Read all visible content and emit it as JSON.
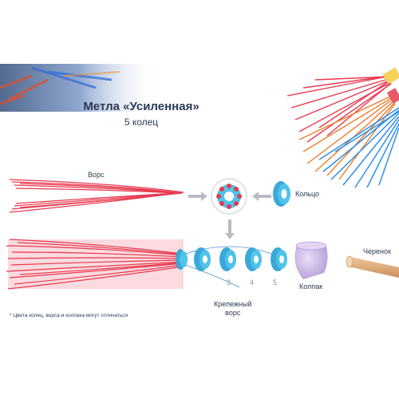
{
  "product": {
    "title": "Метла «Усиленная»",
    "subtitle": "5 колец"
  },
  "labels": {
    "bristles": "Ворс",
    "ring": "Кольцо",
    "handle": "Черенок",
    "cap": "Колпак",
    "fastening_bristles": "Крепежный\nворс"
  },
  "ring_numbers": [
    "3",
    "4",
    "5"
  ],
  "note": "* Цвета колец, ворса и колпака могут отличаться",
  "colors": {
    "bristle_red": "#e8384f",
    "bristle_orange": "#f07b2a",
    "bristle_blue": "#2e8fe8",
    "ring_blue": "#4fc3e8",
    "cap_purple": "#c7b5e3",
    "handle_wood": "#d9a97a",
    "text": "#2b3a55"
  }
}
